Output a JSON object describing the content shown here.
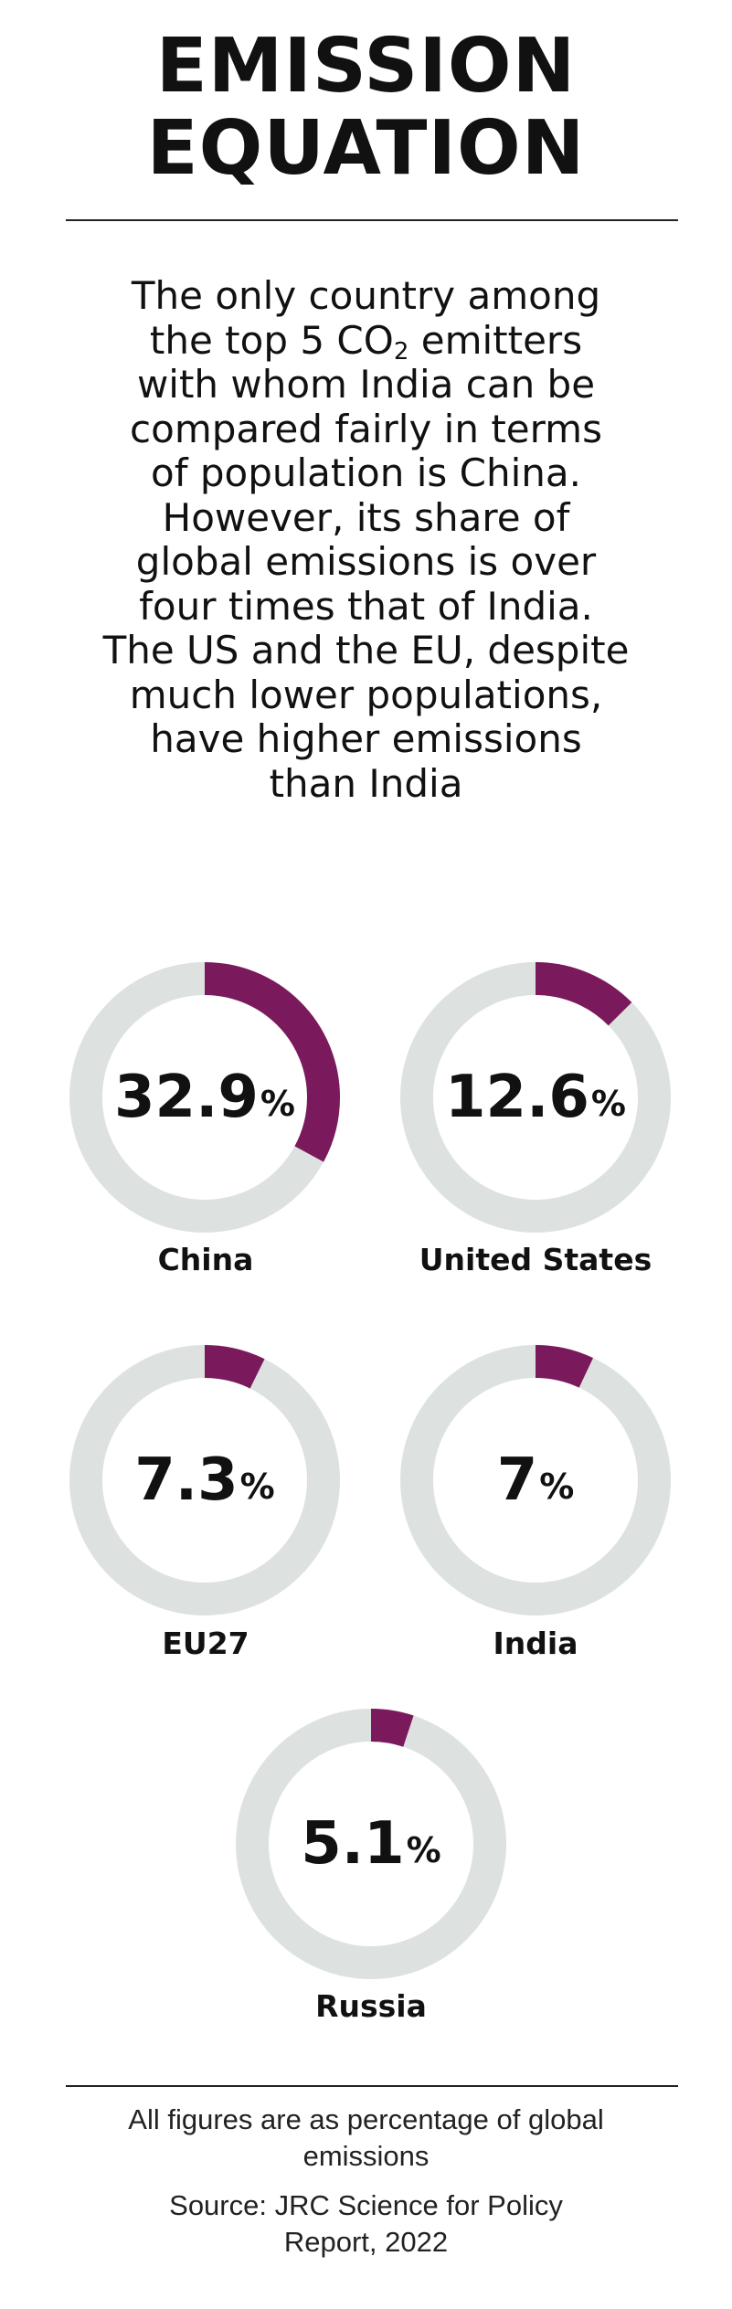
{
  "header": {
    "title_line1": "EMISSION",
    "title_line2": "EQUATION"
  },
  "intro": {
    "line1": "The only country among",
    "line2_before": "the top 5 CO",
    "line2_sub": "2",
    "line2_after": " emitters",
    "line3": "with whom India can be",
    "line4": "compared fairly in terms",
    "line5": "of population is China.",
    "line6": "However, its share of",
    "line7": "global emissions is over",
    "line8": "four times that of India.",
    "line9": "The US and the EU, despite",
    "line10": "much lower populations,",
    "line11": "have higher emissions",
    "line12": "than India"
  },
  "colors": {
    "accent": "#7a1a5c",
    "track": "#dde2e1"
  },
  "chart_data": {
    "type": "pie",
    "unit": "%",
    "categories": [
      "China",
      "United States",
      "EU27",
      "India",
      "Russia"
    ],
    "values": [
      32.9,
      12.6,
      7.3,
      7,
      5.1
    ],
    "labels": [
      "32.9",
      "12.6",
      "7.3",
      "7",
      "5.1"
    ],
    "unit_label": "%"
  },
  "footer": {
    "note_line1": "All figures are as percentage of global",
    "note_line2": "emissions",
    "source_line1": "Source: JRC Science for Policy",
    "source_line2": "Report, 2022"
  }
}
